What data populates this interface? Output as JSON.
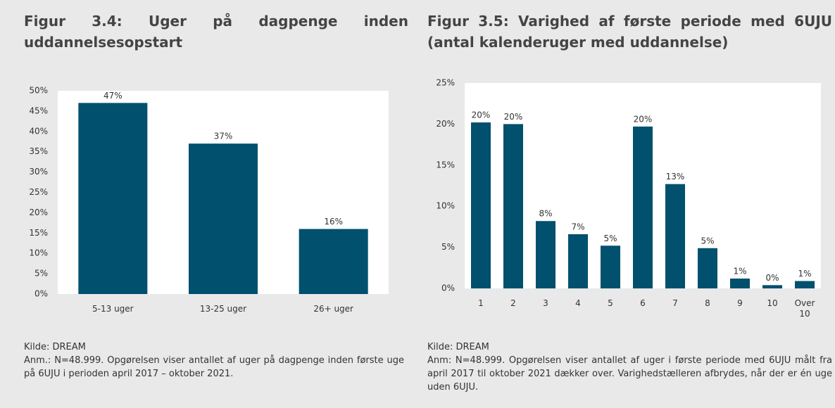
{
  "chart_data": [
    {
      "type": "bar",
      "title": "Figur 3.4: Uger på dagpenge inden uddannelsesopstart",
      "categories": [
        "5-13 uger",
        "13-25 uger",
        "26+ uger"
      ],
      "values": [
        47,
        37,
        16
      ],
      "value_labels": [
        "47%",
        "37%",
        "16%"
      ],
      "color": "#00506e",
      "ylim": [
        0,
        50
      ],
      "yticks": [
        {
          "value": 0,
          "label": "0%"
        },
        {
          "value": 5,
          "label": "5%"
        },
        {
          "value": 10,
          "label": "10%"
        },
        {
          "value": 15,
          "label": "15%"
        },
        {
          "value": 20,
          "label": "20%"
        },
        {
          "value": 25,
          "label": "25%"
        },
        {
          "value": 30,
          "label": "30%"
        },
        {
          "value": 35,
          "label": "35%"
        },
        {
          "value": 40,
          "label": "40%"
        },
        {
          "value": 45,
          "label": "45%"
        },
        {
          "value": 50,
          "label": "50%"
        }
      ],
      "source": "Kilde: DREAM",
      "note": "Anm.: N=48.999. Opgørelsen viser antallet af uger på dagpenge inden første uge på 6UJU i perioden april 2017 – oktober 2021."
    },
    {
      "type": "bar",
      "title": "Figur 3.5: Varighed af første periode med 6UJU (antal kalenderuger med uddannelse)",
      "categories": [
        "1",
        "2",
        "3",
        "4",
        "5",
        "6",
        "7",
        "8",
        "9",
        "10",
        "Over 10"
      ],
      "values": [
        20.2,
        20.0,
        8.2,
        6.6,
        5.2,
        19.7,
        12.7,
        4.9,
        1.2,
        0.4,
        0.9
      ],
      "value_labels": [
        "20%",
        "20%",
        "8%",
        "7%",
        "5%",
        "20%",
        "13%",
        "5%",
        "1%",
        "0%",
        "1%"
      ],
      "color": "#00506e",
      "ylim": [
        0,
        25
      ],
      "yticks": [
        {
          "value": 0,
          "label": "0%"
        },
        {
          "value": 5,
          "label": "5%"
        },
        {
          "value": 10,
          "label": "10%"
        },
        {
          "value": 15,
          "label": "15%"
        },
        {
          "value": 20,
          "label": "20%"
        },
        {
          "value": 25,
          "label": "25%"
        }
      ],
      "source": "Kilde: DREAM",
      "note": "Anm: N=48.999. Opgørelsen viser antallet af uger i første periode med 6UJU målt fra april 2017 til oktober 2021 dækker over. Varighedstælleren afbrydes, når der er én uge uden 6UJU."
    }
  ]
}
